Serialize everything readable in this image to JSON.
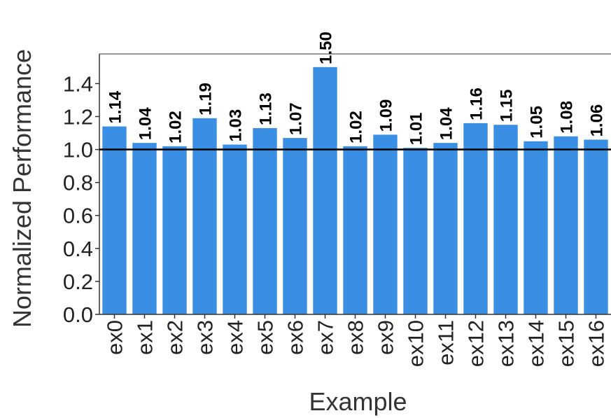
{
  "chart_data": {
    "type": "bar",
    "title": "",
    "xlabel": "Example",
    "ylabel": "Normalized Performance",
    "categories": [
      "ex0",
      "ex1",
      "ex2",
      "ex3",
      "ex4",
      "ex5",
      "ex6",
      "ex7",
      "ex8",
      "ex9",
      "ex10",
      "ex11",
      "ex12",
      "ex13",
      "ex14",
      "ex15",
      "ex16"
    ],
    "values": [
      1.14,
      1.04,
      1.02,
      1.19,
      1.03,
      1.13,
      1.07,
      1.5,
      1.02,
      1.09,
      1.01,
      1.04,
      1.16,
      1.15,
      1.05,
      1.08,
      1.06
    ],
    "data_labels": [
      "1.14",
      "1.04",
      "1.02",
      "1.19",
      "1.03",
      "1.13",
      "1.07",
      "1.50",
      "1.02",
      "1.09",
      "1.01",
      "1.04",
      "1.16",
      "1.15",
      "1.05",
      "1.08",
      "1.06"
    ],
    "yticks": [
      "0.0",
      "0.2",
      "0.4",
      "0.6",
      "0.8",
      "1.0",
      "1.2",
      "1.4"
    ],
    "ylim": [
      0,
      1.58
    ],
    "reference_line": 1.0,
    "grid": false,
    "bar_color": "#3a8fe4",
    "reference_line_color": "#000000"
  }
}
